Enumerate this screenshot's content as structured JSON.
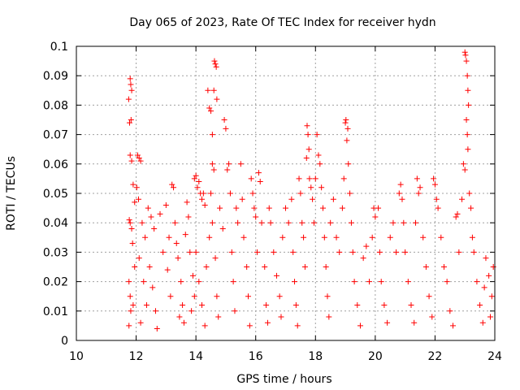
{
  "chart_data": {
    "type": "scatter",
    "title": "Day 065 of 2023, Rate Of TEC Index for receiver hydn",
    "xlabel": "GPS time / hours",
    "ylabel": "ROTI / TECUs",
    "xlim": [
      10,
      24
    ],
    "ylim": [
      0,
      0.1
    ],
    "x_ticks": [
      10,
      12,
      14,
      16,
      18,
      20,
      22,
      24
    ],
    "x_tick_labels": [
      "10",
      "12",
      "14",
      "16",
      "18",
      "20",
      "22",
      "24"
    ],
    "y_ticks": [
      0,
      0.01,
      0.02,
      0.03,
      0.04,
      0.05,
      0.06,
      0.07,
      0.08,
      0.09,
      0.1
    ],
    "y_tick_labels": [
      "0",
      "0.01",
      "0.02",
      "0.03",
      "0.04",
      "0.05",
      "0.06",
      "0.07",
      "0.08",
      "0.09",
      "0.1"
    ],
    "grid": true,
    "marker": "+",
    "color": "#ff0000",
    "series": [
      {
        "points": [
          [
            11.75,
            0.082
          ],
          [
            11.8,
            0.089
          ],
          [
            11.82,
            0.087
          ],
          [
            11.85,
            0.085
          ],
          [
            11.78,
            0.074
          ],
          [
            11.83,
            0.075
          ],
          [
            11.8,
            0.063
          ],
          [
            11.85,
            0.061
          ],
          [
            11.9,
            0.053
          ],
          [
            11.95,
            0.047
          ],
          [
            11.77,
            0.041
          ],
          [
            11.8,
            0.04
          ],
          [
            11.85,
            0.038
          ],
          [
            11.88,
            0.033
          ],
          [
            11.76,
            0.02
          ],
          [
            11.8,
            0.015
          ],
          [
            11.82,
            0.01
          ],
          [
            11.76,
            0.005
          ],
          [
            11.9,
            0.012
          ],
          [
            11.95,
            0.025
          ],
          [
            12.05,
            0.063
          ],
          [
            12.1,
            0.062
          ],
          [
            12.15,
            0.061
          ],
          [
            12.02,
            0.052
          ],
          [
            12.08,
            0.048
          ],
          [
            12.2,
            0.04
          ],
          [
            12.3,
            0.035
          ],
          [
            12.1,
            0.028
          ],
          [
            12.25,
            0.02
          ],
          [
            12.35,
            0.012
          ],
          [
            12.15,
            0.006
          ],
          [
            12.4,
            0.045
          ],
          [
            12.5,
            0.042
          ],
          [
            12.6,
            0.038
          ],
          [
            12.45,
            0.025
          ],
          [
            12.55,
            0.018
          ],
          [
            12.65,
            0.01
          ],
          [
            12.7,
            0.004
          ],
          [
            12.8,
            0.043
          ],
          [
            12.9,
            0.03
          ],
          [
            13.0,
            0.046
          ],
          [
            13.1,
            0.035
          ],
          [
            13.2,
            0.053
          ],
          [
            13.25,
            0.052
          ],
          [
            13.3,
            0.04
          ],
          [
            13.4,
            0.028
          ],
          [
            13.5,
            0.02
          ],
          [
            13.55,
            0.012
          ],
          [
            13.6,
            0.006
          ],
          [
            13.7,
            0.047
          ],
          [
            13.75,
            0.042
          ],
          [
            13.8,
            0.03
          ],
          [
            13.9,
            0.022
          ],
          [
            13.95,
            0.015
          ],
          [
            13.45,
            0.008
          ],
          [
            13.15,
            0.015
          ],
          [
            13.05,
            0.024
          ],
          [
            13.35,
            0.033
          ],
          [
            13.65,
            0.036
          ],
          [
            13.85,
            0.01
          ],
          [
            13.95,
            0.055
          ],
          [
            14.0,
            0.056
          ],
          [
            14.05,
            0.052
          ],
          [
            14.1,
            0.054
          ],
          [
            14.15,
            0.05
          ],
          [
            14.2,
            0.048
          ],
          [
            14.25,
            0.05
          ],
          [
            14.3,
            0.046
          ],
          [
            14.4,
            0.085
          ],
          [
            14.45,
            0.079
          ],
          [
            14.5,
            0.078
          ],
          [
            14.55,
            0.07
          ],
          [
            14.6,
            0.085
          ],
          [
            14.62,
            0.095
          ],
          [
            14.65,
            0.094
          ],
          [
            14.68,
            0.093
          ],
          [
            14.7,
            0.082
          ],
          [
            14.55,
            0.06
          ],
          [
            14.6,
            0.058
          ],
          [
            14.5,
            0.05
          ],
          [
            14.0,
            0.03
          ],
          [
            14.1,
            0.02
          ],
          [
            14.2,
            0.012
          ],
          [
            14.3,
            0.005
          ],
          [
            14.35,
            0.025
          ],
          [
            14.45,
            0.035
          ],
          [
            14.55,
            0.04
          ],
          [
            14.65,
            0.028
          ],
          [
            14.7,
            0.015
          ],
          [
            14.75,
            0.008
          ],
          [
            14.8,
            0.045
          ],
          [
            14.9,
            0.038
          ],
          [
            14.95,
            0.075
          ],
          [
            15.0,
            0.072
          ],
          [
            15.05,
            0.058
          ],
          [
            15.1,
            0.06
          ],
          [
            15.15,
            0.05
          ],
          [
            15.2,
            0.03
          ],
          [
            15.25,
            0.02
          ],
          [
            15.3,
            0.01
          ],
          [
            15.35,
            0.045
          ],
          [
            15.4,
            0.04
          ],
          [
            15.5,
            0.06
          ],
          [
            15.55,
            0.048
          ],
          [
            15.6,
            0.035
          ],
          [
            15.7,
            0.025
          ],
          [
            15.75,
            0.015
          ],
          [
            15.8,
            0.005
          ],
          [
            15.85,
            0.055
          ],
          [
            15.9,
            0.05
          ],
          [
            15.95,
            0.045
          ],
          [
            16.0,
            0.042
          ],
          [
            16.05,
            0.03
          ],
          [
            16.1,
            0.057
          ],
          [
            16.15,
            0.054
          ],
          [
            16.2,
            0.04
          ],
          [
            16.3,
            0.025
          ],
          [
            16.35,
            0.012
          ],
          [
            16.4,
            0.006
          ],
          [
            16.45,
            0.045
          ],
          [
            16.5,
            0.04
          ],
          [
            16.6,
            0.03
          ],
          [
            16.7,
            0.022
          ],
          [
            16.8,
            0.015
          ],
          [
            16.85,
            0.008
          ],
          [
            16.9,
            0.035
          ],
          [
            17.0,
            0.045
          ],
          [
            17.1,
            0.04
          ],
          [
            17.2,
            0.048
          ],
          [
            17.25,
            0.03
          ],
          [
            17.3,
            0.02
          ],
          [
            17.35,
            0.012
          ],
          [
            17.4,
            0.005
          ],
          [
            17.45,
            0.055
          ],
          [
            17.5,
            0.05
          ],
          [
            17.55,
            0.04
          ],
          [
            17.6,
            0.035
          ],
          [
            17.65,
            0.025
          ],
          [
            17.7,
            0.062
          ],
          [
            17.72,
            0.073
          ],
          [
            17.75,
            0.07
          ],
          [
            17.78,
            0.065
          ],
          [
            17.8,
            0.055
          ],
          [
            17.85,
            0.052
          ],
          [
            17.9,
            0.048
          ],
          [
            17.95,
            0.04
          ],
          [
            18.0,
            0.055
          ],
          [
            18.05,
            0.07
          ],
          [
            18.1,
            0.063
          ],
          [
            18.15,
            0.06
          ],
          [
            18.2,
            0.052
          ],
          [
            18.25,
            0.045
          ],
          [
            18.3,
            0.035
          ],
          [
            18.35,
            0.025
          ],
          [
            18.4,
            0.015
          ],
          [
            18.45,
            0.008
          ],
          [
            18.5,
            0.04
          ],
          [
            18.6,
            0.048
          ],
          [
            18.7,
            0.035
          ],
          [
            18.8,
            0.03
          ],
          [
            18.9,
            0.045
          ],
          [
            18.95,
            0.055
          ],
          [
            19.0,
            0.074
          ],
          [
            19.02,
            0.075
          ],
          [
            19.05,
            0.068
          ],
          [
            19.08,
            0.072
          ],
          [
            19.1,
            0.06
          ],
          [
            19.15,
            0.05
          ],
          [
            19.2,
            0.04
          ],
          [
            19.25,
            0.03
          ],
          [
            19.3,
            0.02
          ],
          [
            19.4,
            0.012
          ],
          [
            19.5,
            0.005
          ],
          [
            19.6,
            0.028
          ],
          [
            19.7,
            0.032
          ],
          [
            19.8,
            0.02
          ],
          [
            19.9,
            0.035
          ],
          [
            19.95,
            0.045
          ],
          [
            20.0,
            0.042
          ],
          [
            20.1,
            0.045
          ],
          [
            20.15,
            0.03
          ],
          [
            20.2,
            0.02
          ],
          [
            20.3,
            0.012
          ],
          [
            20.4,
            0.006
          ],
          [
            20.5,
            0.035
          ],
          [
            20.6,
            0.04
          ],
          [
            20.7,
            0.03
          ],
          [
            20.8,
            0.05
          ],
          [
            20.85,
            0.053
          ],
          [
            20.9,
            0.048
          ],
          [
            20.95,
            0.04
          ],
          [
            21.0,
            0.03
          ],
          [
            21.1,
            0.02
          ],
          [
            21.2,
            0.012
          ],
          [
            21.3,
            0.006
          ],
          [
            21.35,
            0.04
          ],
          [
            21.4,
            0.055
          ],
          [
            21.45,
            0.05
          ],
          [
            21.5,
            0.052
          ],
          [
            21.6,
            0.035
          ],
          [
            21.7,
            0.025
          ],
          [
            21.8,
            0.015
          ],
          [
            21.9,
            0.008
          ],
          [
            21.95,
            0.055
          ],
          [
            22.0,
            0.053
          ],
          [
            22.05,
            0.048
          ],
          [
            22.1,
            0.045
          ],
          [
            22.2,
            0.035
          ],
          [
            22.3,
            0.025
          ],
          [
            22.4,
            0.02
          ],
          [
            22.5,
            0.01
          ],
          [
            22.6,
            0.005
          ],
          [
            22.7,
            0.042
          ],
          [
            22.75,
            0.043
          ],
          [
            22.8,
            0.03
          ],
          [
            22.9,
            0.048
          ],
          [
            22.95,
            0.06
          ],
          [
            23.0,
            0.098
          ],
          [
            23.02,
            0.097
          ],
          [
            23.05,
            0.095
          ],
          [
            23.08,
            0.09
          ],
          [
            23.1,
            0.085
          ],
          [
            23.12,
            0.08
          ],
          [
            23.05,
            0.075
          ],
          [
            23.08,
            0.07
          ],
          [
            23.1,
            0.065
          ],
          [
            23.0,
            0.058
          ],
          [
            23.15,
            0.05
          ],
          [
            23.2,
            0.045
          ],
          [
            23.25,
            0.035
          ],
          [
            23.3,
            0.03
          ],
          [
            23.4,
            0.02
          ],
          [
            23.5,
            0.012
          ],
          [
            23.6,
            0.006
          ],
          [
            23.7,
            0.028
          ],
          [
            23.8,
            0.022
          ],
          [
            23.9,
            0.015
          ],
          [
            23.95,
            0.025
          ],
          [
            23.85,
            0.008
          ],
          [
            23.65,
            0.018
          ]
        ]
      }
    ]
  }
}
